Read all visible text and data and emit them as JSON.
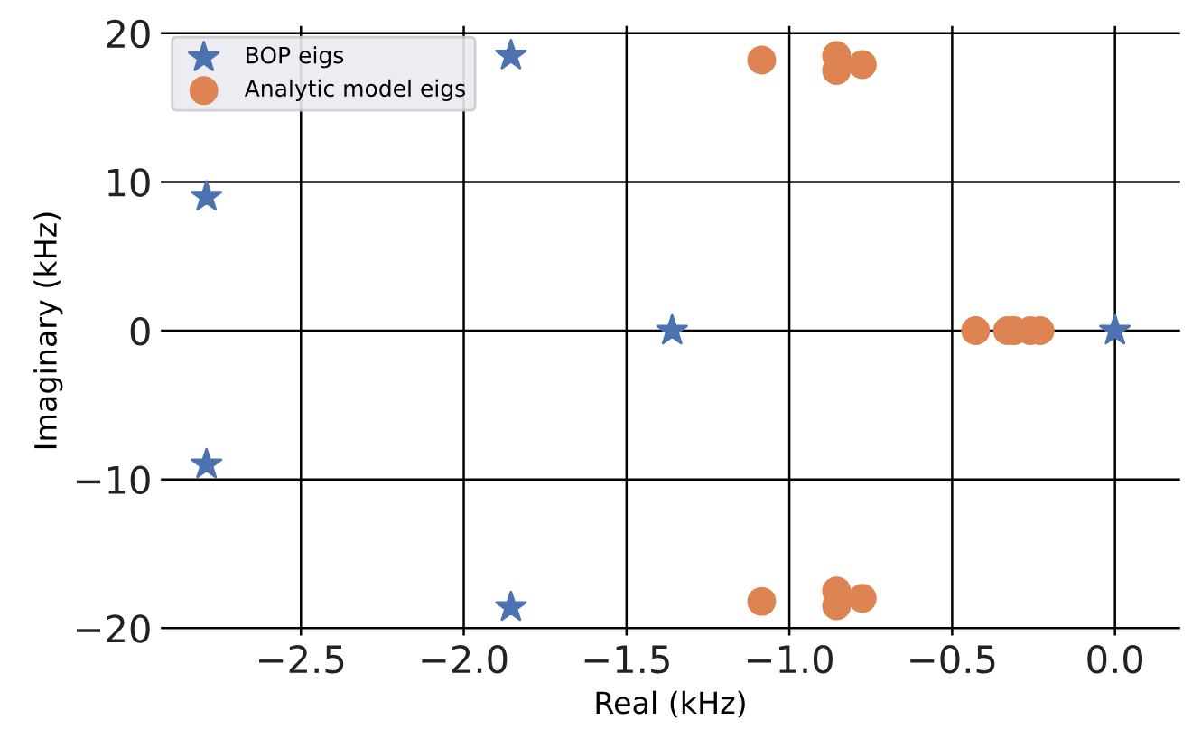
{
  "chart_data": {
    "type": "scatter",
    "xlabel": "Real (kHz)",
    "ylabel": "Imaginary (kHz)",
    "xlim": [
      -2.93,
      0.2
    ],
    "ylim": [
      -20.5,
      20.5
    ],
    "xticks": [
      {
        "value": -2.5,
        "label": "−2.5"
      },
      {
        "value": -2.0,
        "label": "−2.0"
      },
      {
        "value": -1.5,
        "label": "−1.5"
      },
      {
        "value": -1.0,
        "label": "−1.0"
      },
      {
        "value": -0.5,
        "label": "−0.5"
      },
      {
        "value": 0.0,
        "label": "0.0"
      }
    ],
    "yticks": [
      {
        "value": -20,
        "label": "−20"
      },
      {
        "value": -10,
        "label": "−10"
      },
      0,
      10,
      20
    ],
    "grid": true,
    "legend": "top left",
    "series": [
      {
        "name": "BOP eigs",
        "color": "#4c72b0",
        "marker": "star",
        "x": [
          -2.79,
          -2.79,
          -1.855,
          -1.855,
          -1.36,
          0.0
        ],
        "values": [
          9,
          -9,
          18.5,
          -18.6,
          0,
          0
        ]
      },
      {
        "name": "Analytic model eigs",
        "color": "#dd8452",
        "marker": "circle",
        "x": [
          -1.085,
          -0.855,
          -0.855,
          -0.776,
          -1.085,
          -0.855,
          -0.855,
          -0.776,
          -0.428,
          -0.33,
          -0.31,
          -0.26,
          -0.23
        ],
        "values": [
          18.2,
          18.5,
          17.5,
          17.9,
          -18.2,
          -17.5,
          -18.5,
          -18.0,
          0,
          0,
          0,
          0,
          0
        ]
      }
    ]
  }
}
